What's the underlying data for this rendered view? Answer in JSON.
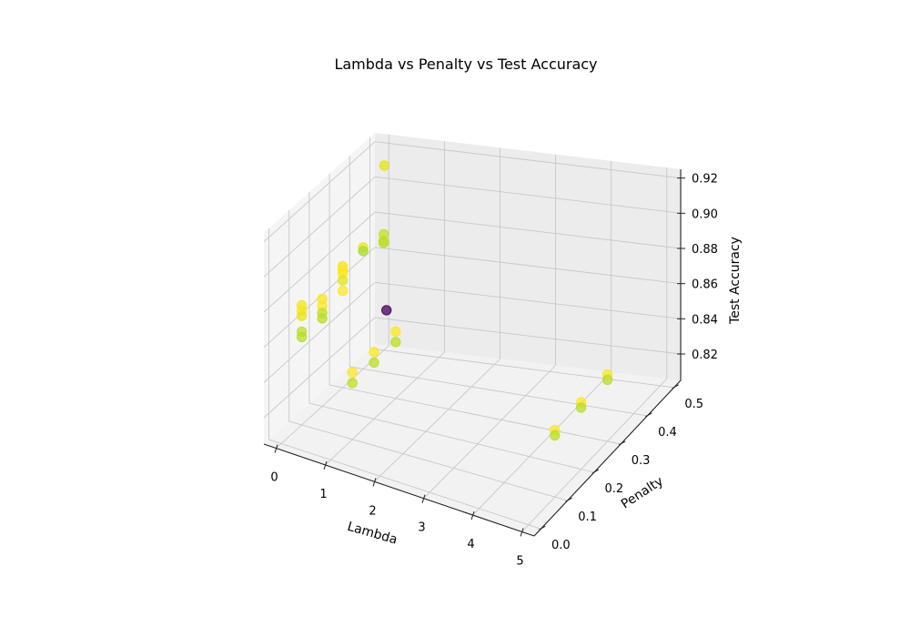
{
  "chart_data": {
    "type": "scatter",
    "projection": "3d",
    "title": "Lambda vs Penalty vs Test Accuracy",
    "xlabel": "Lambda",
    "ylabel": "Penalty",
    "zlabel": "Test Accuracy",
    "xlim": [
      -0.25,
      5.25
    ],
    "ylim": [
      -0.025,
      0.525
    ],
    "zlim": [
      0.805,
      0.925
    ],
    "xticks": [
      "0",
      "1",
      "2",
      "3",
      "4",
      "5"
    ],
    "yticks": [
      "0.0",
      "0.1",
      "0.2",
      "0.3",
      "0.4",
      "0.5"
    ],
    "zticks": [
      "0.82",
      "0.84",
      "0.86",
      "0.88",
      "0.90",
      "0.92"
    ],
    "grid": true,
    "colormap": "viridis",
    "points": [
      {
        "x": 0.0,
        "y": 0.1,
        "z": 0.87,
        "color": "#fde725"
      },
      {
        "x": 0.0,
        "y": 0.1,
        "z": 0.873,
        "color": "#f4e61e"
      },
      {
        "x": 0.0,
        "y": 0.1,
        "z": 0.867,
        "color": "#e6e51c"
      },
      {
        "x": 0.0,
        "y": 0.1,
        "z": 0.858,
        "color": "#bddf26"
      },
      {
        "x": 0.0,
        "y": 0.1,
        "z": 0.855,
        "color": "#b5de2b"
      },
      {
        "x": 0.0,
        "y": 0.2,
        "z": 0.862,
        "color": "#fde725"
      },
      {
        "x": 0.0,
        "y": 0.2,
        "z": 0.866,
        "color": "#f8e621"
      },
      {
        "x": 0.0,
        "y": 0.2,
        "z": 0.858,
        "color": "#c2df23"
      },
      {
        "x": 0.0,
        "y": 0.2,
        "z": 0.855,
        "color": "#b8de29"
      },
      {
        "x": 0.0,
        "y": 0.3,
        "z": 0.87,
        "color": "#fde725"
      },
      {
        "x": 0.0,
        "y": 0.3,
        "z": 0.874,
        "color": "#f1e51d"
      },
      {
        "x": 0.0,
        "y": 0.3,
        "z": 0.866,
        "color": "#e1e41b"
      },
      {
        "x": 0.0,
        "y": 0.3,
        "z": 0.872,
        "color": "#fbe723"
      },
      {
        "x": 0.0,
        "y": 0.4,
        "z": 0.874,
        "color": "#ece51b"
      },
      {
        "x": 0.0,
        "y": 0.5,
        "z": 0.871,
        "color": "#c8e020"
      },
      {
        "x": 0.0,
        "y": 0.5,
        "z": 0.867,
        "color": "#b5de2b"
      },
      {
        "x": 0.0,
        "y": 0.5,
        "z": 0.866,
        "color": "#bddf26"
      },
      {
        "x": 0.0,
        "y": 0.3,
        "z": 0.86,
        "color": "#fde725"
      },
      {
        "x": 0.0,
        "y": 0.4,
        "z": 0.872,
        "color": "#a8db34"
      },
      {
        "x": 0.01,
        "y": 0.5,
        "z": 0.91,
        "color": "#e2e418"
      },
      {
        "x": 0.05,
        "y": 0.5,
        "z": 0.828,
        "color": "#440154"
      },
      {
        "x": 1.0,
        "y": 0.1,
        "z": 0.843,
        "color": "#fde725"
      },
      {
        "x": 1.0,
        "y": 0.1,
        "z": 0.837,
        "color": "#bddf26"
      },
      {
        "x": 1.0,
        "y": 0.2,
        "z": 0.843,
        "color": "#fde725"
      },
      {
        "x": 1.0,
        "y": 0.2,
        "z": 0.837,
        "color": "#bddf26"
      },
      {
        "x": 1.0,
        "y": 0.3,
        "z": 0.843,
        "color": "#fde725"
      },
      {
        "x": 1.0,
        "y": 0.3,
        "z": 0.837,
        "color": "#bddf26"
      },
      {
        "x": 5.0,
        "y": 0.1,
        "z": 0.843,
        "color": "#fde725"
      },
      {
        "x": 5.0,
        "y": 0.1,
        "z": 0.84,
        "color": "#b8de29"
      },
      {
        "x": 5.0,
        "y": 0.2,
        "z": 0.843,
        "color": "#fde725"
      },
      {
        "x": 5.0,
        "y": 0.2,
        "z": 0.84,
        "color": "#b8de29"
      },
      {
        "x": 5.0,
        "y": 0.3,
        "z": 0.843,
        "color": "#fde725"
      },
      {
        "x": 5.0,
        "y": 0.3,
        "z": 0.84,
        "color": "#b8de29"
      }
    ]
  }
}
